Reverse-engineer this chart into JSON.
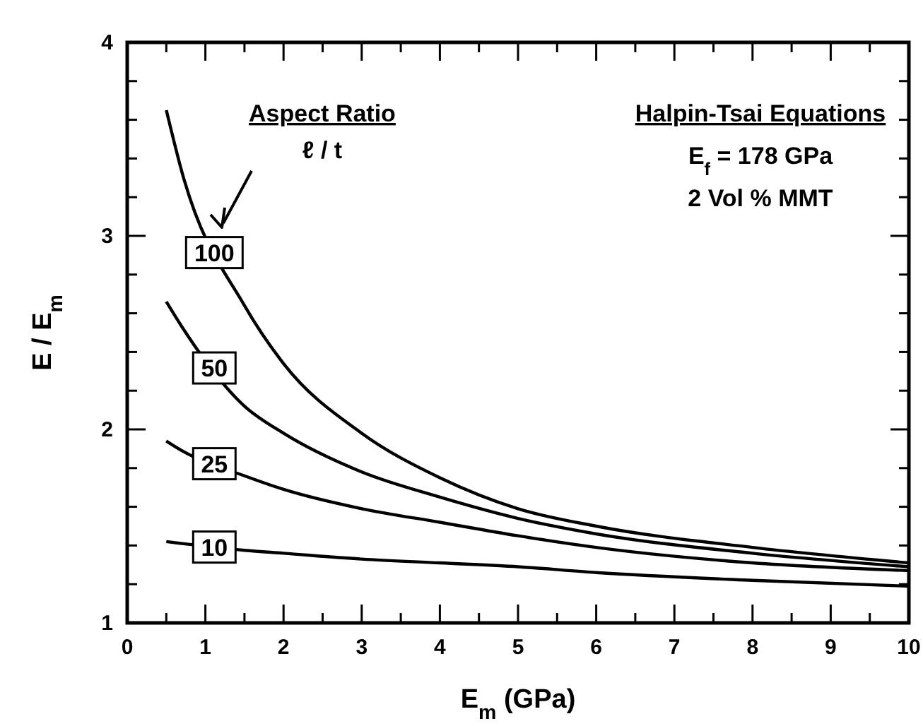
{
  "chart_data": {
    "type": "line",
    "xlabel": "E$_{m}$ (GPa)",
    "ylabel": "E / E$_{m}$",
    "annotations": [
      "Aspect Ratio",
      "ℓ / t",
      "Halpin-Tsai Equations",
      "E$_{f}$ = 178 GPa",
      "2 Vol % MMT"
    ],
    "x": [
      0.5,
      0.7,
      1.5,
      2,
      3,
      4,
      5,
      6,
      8,
      10
    ],
    "series": [
      {
        "name": "100",
        "color": "#000000",
        "values": [
          3.65,
          3.33,
          2.64,
          2.34,
          1.98,
          1.75,
          1.59,
          1.5,
          1.39,
          1.31
        ]
      },
      {
        "name": "50",
        "color": "#000000",
        "values": [
          2.66,
          2.53,
          2.12,
          1.98,
          1.78,
          1.65,
          1.54,
          1.46,
          1.36,
          1.29
        ]
      },
      {
        "name": "25",
        "color": "#000000",
        "values": [
          1.94,
          1.89,
          1.76,
          1.69,
          1.59,
          1.52,
          1.45,
          1.39,
          1.31,
          1.27
        ]
      },
      {
        "name": "10",
        "color": "#000000",
        "values": [
          1.42,
          1.41,
          1.375,
          1.36,
          1.33,
          1.31,
          1.29,
          1.26,
          1.22,
          1.19
        ]
      }
    ],
    "xlim": [
      0,
      10
    ],
    "ylim": [
      1,
      4
    ],
    "xticks": [
      0,
      {
        "value": 0.5,
        "label": null
      },
      1,
      {
        "value": 1.5,
        "label": null
      },
      2,
      {
        "value": 2.5,
        "label": null
      },
      3,
      {
        "value": 3.5,
        "label": null
      },
      4,
      {
        "value": 4.5,
        "label": null
      },
      5,
      {
        "value": 5.5,
        "label": null
      },
      6,
      {
        "value": 6.5,
        "label": null
      },
      7,
      {
        "value": 7.5,
        "label": null
      },
      8,
      {
        "value": 8.5,
        "label": null
      },
      9,
      {
        "value": 9.5,
        "label": null
      },
      10
    ],
    "yticks": [
      1,
      {
        "value": 1.2,
        "label": null
      },
      {
        "value": 1.4,
        "label": null
      },
      {
        "value": 1.6,
        "label": null
      },
      {
        "value": 1.8,
        "label": null
      },
      2,
      {
        "value": 2.2,
        "label": null
      },
      {
        "value": 2.4,
        "label": null
      },
      {
        "value": 2.6,
        "label": null
      },
      {
        "value": 2.8,
        "label": null
      },
      3,
      {
        "value": 3.2,
        "label": null
      },
      {
        "value": 3.4,
        "label": null
      },
      {
        "value": 3.6,
        "label": null
      },
      {
        "value": 3.8,
        "label": null
      },
      4
    ],
    "grid": false,
    "marker": "none",
    "line_style": "solid"
  }
}
